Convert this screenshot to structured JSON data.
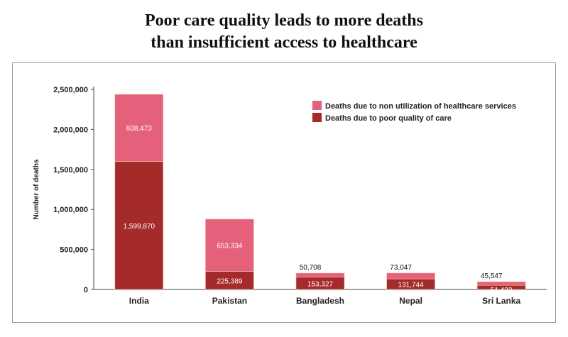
{
  "title_line1": "Poor care quality leads to more deaths",
  "title_line2": "than insufficient access to healthcare",
  "chart_data": {
    "type": "bar",
    "stacked": true,
    "categories": [
      "India",
      "Pakistan",
      "Bangladesh",
      "Nepal",
      "Sri Lanka"
    ],
    "series": [
      {
        "name": "Deaths due to poor quality of care",
        "color": "#a52a2a",
        "values": [
          1599870,
          225389,
          153327,
          131744,
          51422
        ],
        "labels": [
          "1,599,870",
          "225,389",
          "153,327",
          "131,744",
          "51,422"
        ]
      },
      {
        "name": "Deaths due to non utilization of healthcare services",
        "color": "#e5607a",
        "values": [
          838473,
          653334,
          50708,
          73047,
          45547
        ],
        "labels": [
          "838,473",
          "653,334",
          "50,708",
          "73,047",
          "45,547"
        ]
      }
    ],
    "ylabel": "Number of deaths",
    "xlabel": "",
    "ylim": [
      0,
      2500000
    ],
    "yticks": [
      0,
      500000,
      1000000,
      1500000,
      2000000,
      2500000
    ],
    "ytick_labels": [
      "0",
      "500,000",
      "1,000,000",
      "1,500,000",
      "2,000,000",
      "2,500,000"
    ],
    "legend_position": "top-right",
    "grid": false
  }
}
